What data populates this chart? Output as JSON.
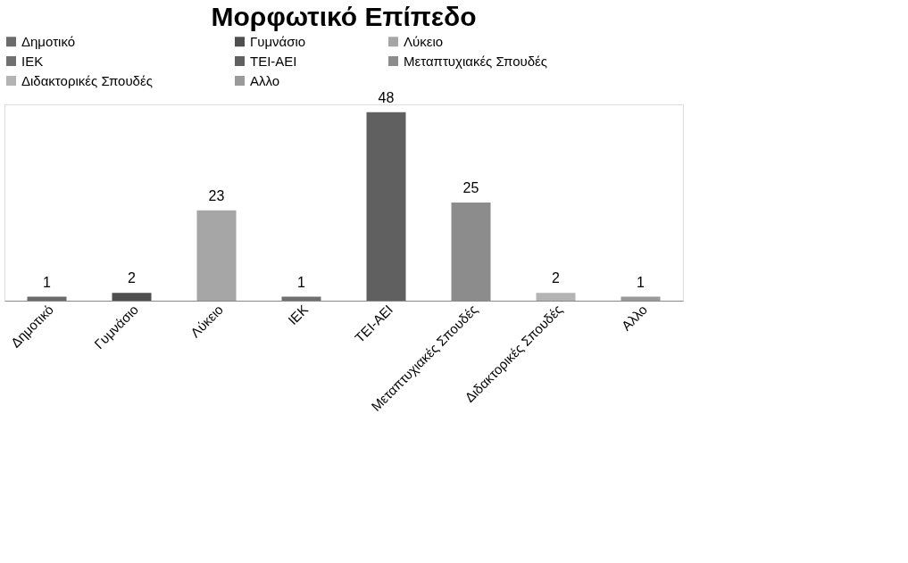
{
  "chart_data": {
    "type": "bar",
    "title": "Μορφωτικό Επίπεδο",
    "categories": [
      "Δημοτικό",
      "Γυμνάσιο",
      "Λύκειο",
      "ΙΕΚ",
      "ΤΕΙ-ΑΕΙ",
      "Μεταπτυχιακές Σπουδές",
      "Διδακτορικές Σπουδές",
      "Αλλο"
    ],
    "series": [
      {
        "name": "Δημοτικό",
        "color": "#6b6b6b",
        "values": [
          1,
          null,
          null,
          null,
          null,
          null,
          null,
          null
        ]
      },
      {
        "name": "Γυμνάσιο",
        "color": "#4f4f4f",
        "values": [
          null,
          2,
          null,
          null,
          null,
          null,
          null,
          null
        ]
      },
      {
        "name": "Λύκειο",
        "color": "#a6a6a6",
        "values": [
          null,
          null,
          23,
          null,
          null,
          null,
          null,
          null
        ]
      },
      {
        "name": "ΙΕΚ",
        "color": "#707070",
        "values": [
          null,
          null,
          null,
          1,
          null,
          null,
          null,
          null
        ]
      },
      {
        "name": "ΤΕΙ-ΑΕΙ",
        "color": "#606060",
        "values": [
          null,
          null,
          null,
          null,
          48,
          null,
          null,
          null
        ]
      },
      {
        "name": "Μεταπτυχιακές Σπουδές",
        "color": "#8c8c8c",
        "values": [
          null,
          null,
          null,
          null,
          null,
          25,
          null,
          null
        ]
      },
      {
        "name": "Διδακτορικές Σπουδές",
        "color": "#b4b4b4",
        "values": [
          null,
          null,
          null,
          null,
          null,
          null,
          2,
          null
        ]
      },
      {
        "name": "Αλλο",
        "color": "#9a9a9a",
        "values": [
          null,
          null,
          null,
          null,
          null,
          null,
          null,
          1
        ]
      }
    ],
    "data_labels": true,
    "grid": false,
    "legend": "top"
  }
}
